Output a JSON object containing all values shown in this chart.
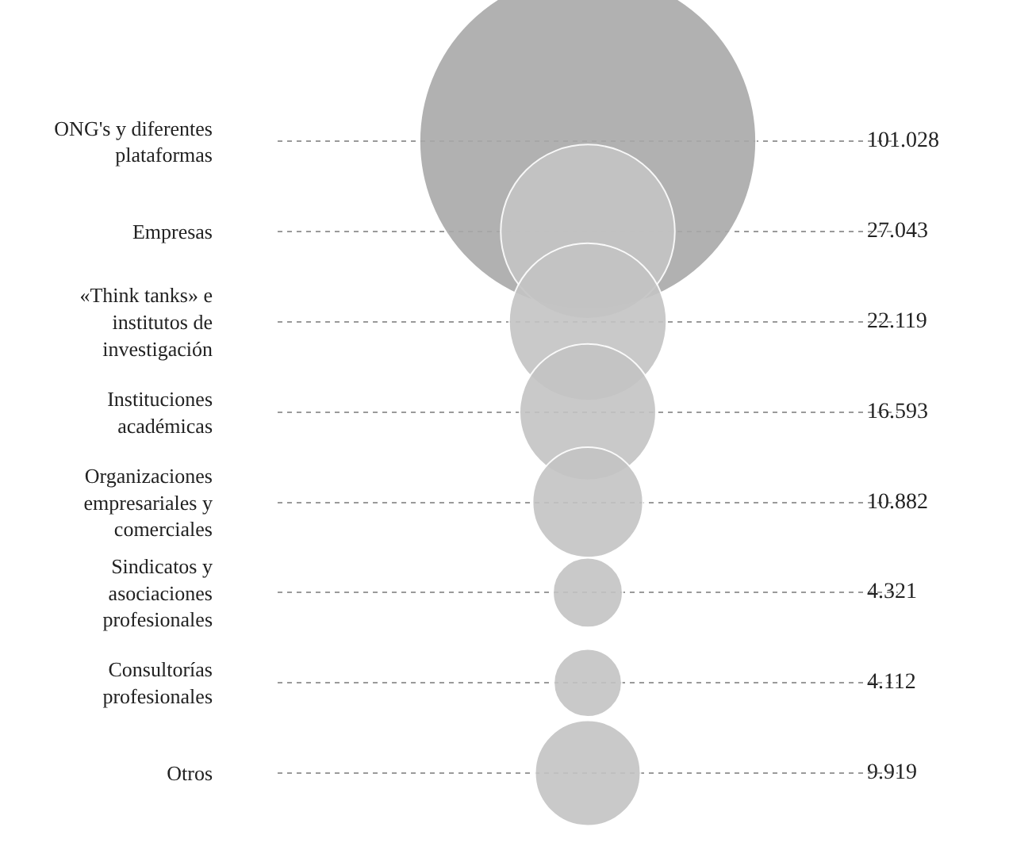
{
  "chart_data": {
    "type": "other",
    "categories": [
      "ONG's y diferentes plataformas",
      "Empresas",
      "«Think tanks» e institutos de investigación",
      "Instituciones académicas",
      "Organizaciones empresariales y comerciales",
      "Sindicatos y asociaciones profesionales",
      "Consultorías profesionales",
      "Otros"
    ],
    "values": [
      101028,
      27043,
      22119,
      16593,
      10882,
      4321,
      4112,
      9919
    ],
    "value_labels": [
      "101.028",
      "27.043",
      "22.119",
      "16.593",
      "10.882",
      "4.321",
      "4.112",
      "9.919"
    ],
    "colors": [
      "#a9a9a9",
      "#c4c4c4",
      "#c4c4c4",
      "#c4c4c4",
      "#c4c4c4",
      "#c4c4c4",
      "#c4c4c4",
      "#c4c4c4"
    ]
  }
}
